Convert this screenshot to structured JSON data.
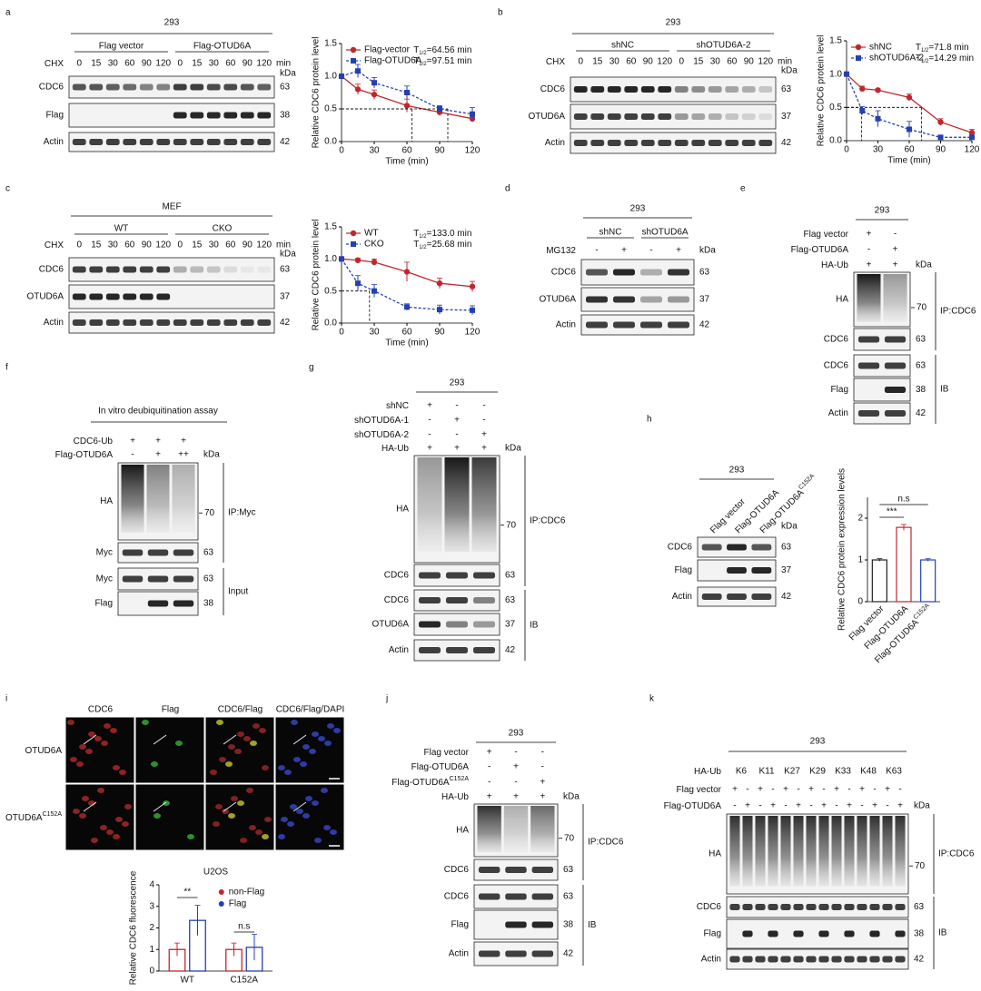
{
  "panels": [
    {
      "letter": "a",
      "header": "293",
      "groups": [
        "Flag vector",
        "Flag-OTUD6A"
      ],
      "conditions": [
        {
          "label": "CHX",
          "marks": [
            "0",
            "15",
            "30",
            "60",
            "90",
            "120",
            "0",
            "15",
            "30",
            "60",
            "90",
            "120"
          ]
        }
      ],
      "unit": "min",
      "kda": "kDa",
      "blots": [
        {
          "label": "CDC6",
          "kda": "63"
        },
        {
          "label": "Flag",
          "kda": "38"
        },
        {
          "label": "Actin",
          "kda": "42"
        }
      ]
    },
    {
      "letter": "b",
      "header": "293",
      "groups": [
        "shNC",
        "shOTUD6A-2"
      ],
      "conditions": [
        {
          "label": "CHX",
          "marks": [
            "0",
            "15",
            "30",
            "60",
            "90",
            "120",
            "0",
            "15",
            "30",
            "60",
            "90",
            "120"
          ]
        }
      ],
      "unit": "min",
      "kda": "kDa",
      "blots": [
        {
          "label": "CDC6",
          "kda": "63"
        },
        {
          "label": "OTUD6A",
          "kda": "37"
        },
        {
          "label": "Actin",
          "kda": "42"
        }
      ]
    },
    {
      "letter": "c",
      "header": "MEF",
      "groups": [
        "WT",
        "CKO"
      ],
      "conditions": [
        {
          "label": "CHX",
          "marks": [
            "0",
            "15",
            "30",
            "60",
            "90",
            "120",
            "0",
            "15",
            "30",
            "60",
            "90",
            "120"
          ]
        }
      ],
      "unit": "min",
      "kda": "kDa",
      "blots": [
        {
          "label": "CDC6",
          "kda": "63"
        },
        {
          "label": "OTUD6A",
          "kda": "37"
        },
        {
          "label": "Actin",
          "kda": "42"
        }
      ]
    },
    {
      "letter": "d",
      "header": "293",
      "groups": [
        "shNC",
        "shOTUD6A"
      ],
      "conditions": [
        {
          "label": "MG132",
          "marks": [
            "-",
            "+",
            "-",
            "+"
          ]
        }
      ],
      "kda": "kDa",
      "blots": [
        {
          "label": "CDC6",
          "kda": "63"
        },
        {
          "label": "OTUD6A",
          "kda": "37"
        },
        {
          "label": "Actin",
          "kda": "42"
        }
      ]
    },
    {
      "letter": "e",
      "header": "293",
      "conditions": [
        {
          "label": "Flag vector",
          "marks": [
            "+",
            "-"
          ]
        },
        {
          "label": "Flag-OTUD6A",
          "marks": [
            "-",
            "+"
          ]
        },
        {
          "label": "HA-Ub",
          "marks": [
            "+",
            "+"
          ]
        }
      ],
      "kda": "kDa",
      "blots": [
        {
          "label": "HA",
          "marker": "70"
        },
        {
          "label": "CDC6",
          "kda": "63"
        },
        {
          "label": "CDC6",
          "kda": "63"
        },
        {
          "label": "Flag",
          "kda": "38"
        },
        {
          "label": "Actin",
          "kda": "42"
        }
      ],
      "brackets": [
        "IP:CDC6",
        "IB"
      ]
    },
    {
      "letter": "f",
      "header": "In vitro deubiquitination assay",
      "conditions": [
        {
          "label": "CDC6-Ub",
          "marks": [
            "+",
            "+",
            "+"
          ]
        },
        {
          "label": "Flag-OTUD6A",
          "marks": [
            "-",
            "+",
            "++"
          ]
        }
      ],
      "kda": "kDa",
      "blots": [
        {
          "label": "HA",
          "marker": "70"
        },
        {
          "label": "Myc",
          "kda": "63"
        },
        {
          "label": "Myc",
          "kda": "63"
        },
        {
          "label": "Flag",
          "kda": "38"
        }
      ],
      "brackets": [
        "IP:Myc",
        "Input"
      ]
    },
    {
      "letter": "g",
      "header": "293",
      "conditions": [
        {
          "label": "shNC",
          "marks": [
            "+",
            "-",
            "-"
          ]
        },
        {
          "label": "shOTUD6A-1",
          "marks": [
            "-",
            "+",
            "-"
          ]
        },
        {
          "label": "shOTUD6A-2",
          "marks": [
            "-",
            "-",
            "+"
          ]
        },
        {
          "label": "HA-Ub",
          "marks": [
            "+",
            "+",
            "+"
          ]
        }
      ],
      "kda": "kDa",
      "blots": [
        {
          "label": "HA",
          "marker": "70"
        },
        {
          "label": "CDC6",
          "kda": "63"
        },
        {
          "label": "CDC6",
          "kda": "63"
        },
        {
          "label": "OTUD6A",
          "kda": "37"
        },
        {
          "label": "Actin",
          "kda": "42"
        }
      ],
      "brackets": [
        "IP:CDC6",
        "IB"
      ]
    },
    {
      "letter": "h",
      "header": "293",
      "lane_labels": [
        {
          "text": "Flag vector"
        },
        {
          "text": "Flag-OTUD6A"
        },
        {
          "text": "Flag-OTUD6A",
          "sup": "C152A"
        }
      ],
      "kda": "kDa",
      "blots": [
        {
          "label": "CDC6",
          "kda": "63"
        },
        {
          "label": "Flag",
          "kda": "37"
        },
        {
          "label": "Actin",
          "kda": "42"
        }
      ]
    },
    {
      "letter": "i",
      "columns": [
        "CDC6",
        "Flag",
        "CDC6/Flag",
        "CDC6/Flag/DAPI"
      ],
      "rows": [
        {
          "text": "OTUD6A"
        },
        {
          "text": "OTUD6A",
          "sup": "C152A"
        }
      ]
    },
    {
      "letter": "j",
      "header": "293",
      "conditions": [
        {
          "label": "Flag vector",
          "marks": [
            "+",
            "-",
            "-"
          ]
        },
        {
          "label": "Flag-OTUD6A",
          "marks": [
            "-",
            "+",
            "-"
          ]
        },
        {
          "label": "Flag-OTUD6A",
          "sup": "C152A",
          "marks": [
            "-",
            "-",
            "+"
          ]
        },
        {
          "label": "HA-Ub",
          "marks": [
            "+",
            "+",
            "+"
          ]
        }
      ],
      "kda": "kDa",
      "blots": [
        {
          "label": "HA",
          "marker": "70"
        },
        {
          "label": "CDC6",
          "kda": "63"
        },
        {
          "label": "CDC6",
          "kda": "63"
        },
        {
          "label": "Flag",
          "kda": "38"
        },
        {
          "label": "Actin",
          "kda": "42"
        }
      ],
      "brackets": [
        "IP:CDC6",
        "IB"
      ]
    },
    {
      "letter": "k",
      "header": "293",
      "conditions": [
        {
          "label": "HA-Ub",
          "marks": [
            "K6",
            "K11",
            "K27",
            "K29",
            "K33",
            "K48",
            "K63"
          ]
        },
        {
          "label": "Flag vector",
          "marks": [
            "+",
            "-",
            "+",
            "-",
            "+",
            "-",
            "+",
            "-",
            "+",
            "-",
            "+",
            "-",
            "+",
            "-"
          ]
        },
        {
          "label": "Flag-OTUD6A",
          "marks": [
            "-",
            "+",
            "-",
            "+",
            "-",
            "+",
            "-",
            "+",
            "-",
            "+",
            "-",
            "+",
            "-",
            "+"
          ]
        }
      ],
      "kda": "kDa",
      "blots": [
        {
          "label": "HA",
          "marker": "70"
        },
        {
          "label": "CDC6",
          "kda": "63"
        },
        {
          "label": "Flag",
          "kda": "38"
        },
        {
          "label": "Actin",
          "kda": "42"
        }
      ],
      "brackets": [
        "IP:CDC6",
        "IB"
      ]
    }
  ],
  "chart_data": [
    {
      "type": "line",
      "xlabel": "Time (min)",
      "ylabel": "Relative CDC6 protein level",
      "x": [
        0,
        15,
        30,
        60,
        90,
        120
      ],
      "xlim": [
        0,
        120
      ],
      "xticks": [
        0,
        30,
        60,
        90,
        120
      ],
      "ylim": [
        0,
        1.5
      ],
      "yticks": [
        {
          "value": 0,
          "label": "0.0"
        },
        0.5,
        {
          "value": 1,
          "label": "1.0"
        },
        1.5
      ],
      "series": [
        {
          "name": "Flag-vector",
          "color": "#c0272d",
          "dashed": false,
          "marker": "circle",
          "values": [
            1.0,
            0.8,
            0.72,
            0.55,
            0.45,
            0.35
          ],
          "errors": [
            0,
            0.08,
            0.07,
            0.1,
            0.05,
            0.05
          ],
          "half_life": 64.56,
          "t_half": {
            "symbol": "T",
            "sub": "1/2",
            "text": "=64.56 min"
          }
        },
        {
          "name": "Flag-OTUD6A",
          "color": "#2640b0",
          "dashed": true,
          "marker": "square",
          "values": [
            1.0,
            1.08,
            0.9,
            0.75,
            0.5,
            0.42
          ],
          "errors": [
            0,
            0.1,
            0.08,
            0.1,
            0.05,
            0.1
          ],
          "half_life": 97.51,
          "t_half": {
            "symbol": "T",
            "sub": "1/2",
            "text": "=97.51 min"
          }
        }
      ]
    },
    {
      "type": "line",
      "xlabel": "Time (min)",
      "ylabel": "Relative CDC6 protein level",
      "x": [
        0,
        15,
        30,
        60,
        90,
        120
      ],
      "xlim": [
        0,
        120
      ],
      "xticks": [
        0,
        30,
        60,
        90,
        120
      ],
      "ylim": [
        0,
        1.5
      ],
      "yticks": [
        {
          "value": 0,
          "label": "0.0"
        },
        0.5,
        {
          "value": 1,
          "label": "1.0"
        },
        1.5
      ],
      "series": [
        {
          "name": "shNC",
          "color": "#c0272d",
          "dashed": false,
          "marker": "circle",
          "values": [
            1.0,
            0.78,
            0.76,
            0.65,
            0.28,
            0.12
          ],
          "errors": [
            0,
            0.04,
            0.02,
            0.05,
            0.05,
            0.05
          ],
          "half_life": 71.8,
          "t_half": {
            "symbol": "T",
            "sub": "1/2",
            "text": "=71.8 min"
          }
        },
        {
          "name": "shOTUD6A-2",
          "color": "#2640b0",
          "dashed": true,
          "marker": "square",
          "values": [
            1.0,
            0.45,
            0.33,
            0.17,
            0.05,
            0.05
          ],
          "errors": [
            0,
            0.06,
            0.12,
            0.12,
            0.03,
            0.02
          ],
          "half_life": 14.29,
          "t_half": {
            "symbol": "T",
            "sub": "1/2",
            "text": "=14.29 min"
          }
        }
      ]
    },
    {
      "type": "line",
      "xlabel": "Time (min)",
      "ylabel": "Relative CDC6 protein level",
      "x": [
        0,
        15,
        30,
        60,
        90,
        120
      ],
      "xlim": [
        0,
        120
      ],
      "xticks": [
        0,
        30,
        60,
        90,
        120
      ],
      "ylim": [
        0,
        1.5
      ],
      "yticks": [
        {
          "value": 0,
          "label": "0.0"
        },
        0.5,
        {
          "value": 1,
          "label": "1.0"
        },
        1.5
      ],
      "series": [
        {
          "name": "WT",
          "color": "#c0272d",
          "dashed": false,
          "marker": "circle",
          "values": [
            1.0,
            0.98,
            0.95,
            0.8,
            0.62,
            0.57
          ],
          "errors": [
            0,
            0.03,
            0.05,
            0.15,
            0.08,
            0.08
          ],
          "t_half": {
            "symbol": "T",
            "sub": "1/2",
            "text": "=133.0 min"
          }
        },
        {
          "name": "CKO",
          "color": "#2640b0",
          "dashed": true,
          "marker": "square",
          "values": [
            1.0,
            0.62,
            0.5,
            0.25,
            0.21,
            0.2
          ],
          "errors": [
            0,
            0.12,
            0.1,
            0.05,
            0.07,
            0.07
          ],
          "half_life": 25.68,
          "t_half": {
            "symbol": "T",
            "sub": "1/2",
            "text": "=25.68 min"
          }
        }
      ]
    },
    {
      "type": "bar",
      "ylabel": "Relative CDC6 protein expression levels",
      "categories": [
        "Flag vector",
        "Flag-OTUD6A",
        "Flag-OTUD6A"
      ],
      "category_sups": [
        null,
        null,
        "C152A"
      ],
      "values": [
        1.0,
        1.78,
        1.0
      ],
      "errors": [
        0.03,
        0.07,
        0.03
      ],
      "colors": [
        "#222222",
        "#c0272d",
        "#2640b0"
      ],
      "ylim": [
        0,
        2.5
      ],
      "yticks": [
        0,
        1,
        2
      ],
      "annotations": [
        "***",
        "n.s"
      ]
    },
    {
      "type": "grouped_bar",
      "title": "U2OS",
      "ylabel": "Relative CDC6 fluorescence",
      "categories": [
        "WT",
        "C152A"
      ],
      "series": [
        {
          "name": "non-Flag",
          "color": "#c0272d",
          "values": [
            1.0,
            1.0
          ],
          "errors": [
            0.3,
            0.3
          ]
        },
        {
          "name": "Flag",
          "color": "#2640b0",
          "values": [
            2.35,
            1.1
          ],
          "errors": [
            0.7,
            0.6
          ]
        }
      ],
      "ylim": [
        0,
        4
      ],
      "yticks": [
        0,
        1,
        2,
        3,
        4
      ],
      "annotations": [
        "**",
        "n.s"
      ]
    }
  ]
}
